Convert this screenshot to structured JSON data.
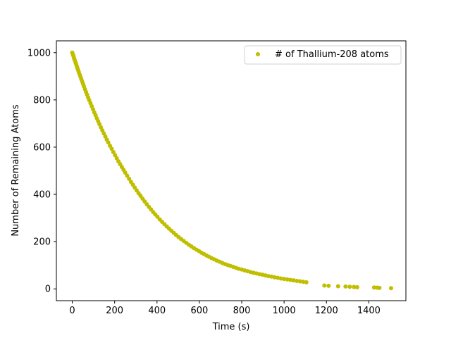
{
  "chart_data": {
    "type": "scatter",
    "title": "",
    "xlabel": "Time (s)",
    "ylabel": "Number of Remaining Atoms",
    "xlim": [
      -75,
      1575
    ],
    "ylim": [
      -50,
      1050
    ],
    "xticks": [
      0,
      200,
      400,
      600,
      800,
      1000,
      1200,
      1400
    ],
    "yticks": [
      0,
      200,
      400,
      600,
      800,
      1000
    ],
    "grid": false,
    "legend_position": "top-right",
    "series": [
      {
        "name": "# of Thallium-208 atoms",
        "color": "#bfbf00",
        "marker": "circle",
        "points": [
          [
            0,
            1000
          ],
          [
            2,
            995
          ],
          [
            4,
            990
          ],
          [
            6,
            985
          ],
          [
            8,
            978
          ],
          [
            10,
            972
          ],
          [
            13,
            965
          ],
          [
            16,
            957
          ],
          [
            19,
            949
          ],
          [
            22,
            941
          ],
          [
            25,
            933
          ],
          [
            28,
            925
          ],
          [
            31,
            917
          ],
          [
            35,
            907
          ],
          [
            39,
            897
          ],
          [
            43,
            887
          ],
          [
            47,
            877
          ],
          [
            51,
            867
          ],
          [
            55,
            857
          ],
          [
            60,
            845
          ],
          [
            65,
            833
          ],
          [
            70,
            822
          ],
          [
            75,
            810
          ],
          [
            80,
            799
          ],
          [
            86,
            786
          ],
          [
            92,
            773
          ],
          [
            98,
            760
          ],
          [
            104,
            747
          ],
          [
            110,
            735
          ],
          [
            116,
            722
          ],
          [
            122,
            710
          ],
          [
            128,
            698
          ],
          [
            135,
            684
          ],
          [
            142,
            671
          ],
          [
            149,
            658
          ],
          [
            156,
            645
          ],
          [
            163,
            632
          ],
          [
            170,
            620
          ],
          [
            178,
            606
          ],
          [
            186,
            593
          ],
          [
            194,
            579
          ],
          [
            202,
            566
          ],
          [
            210,
            553
          ],
          [
            218,
            540
          ],
          [
            226,
            528
          ],
          [
            234,
            516
          ],
          [
            242,
            504
          ],
          [
            250,
            492
          ],
          [
            259,
            479
          ],
          [
            268,
            466
          ],
          [
            277,
            453
          ],
          [
            286,
            441
          ],
          [
            295,
            429
          ],
          [
            304,
            417
          ],
          [
            313,
            405
          ],
          [
            322,
            394
          ],
          [
            332,
            382
          ],
          [
            342,
            370
          ],
          [
            352,
            358
          ],
          [
            362,
            347
          ],
          [
            372,
            336
          ],
          [
            382,
            325
          ],
          [
            392,
            315
          ],
          [
            402,
            305
          ],
          [
            413,
            294
          ],
          [
            424,
            284
          ],
          [
            435,
            274
          ],
          [
            446,
            264
          ],
          [
            457,
            255
          ],
          [
            468,
            246
          ],
          [
            479,
            237
          ],
          [
            490,
            228
          ],
          [
            502,
            219
          ],
          [
            514,
            211
          ],
          [
            526,
            203
          ],
          [
            538,
            195
          ],
          [
            550,
            187
          ],
          [
            562,
            180
          ],
          [
            574,
            173
          ],
          [
            586,
            166
          ],
          [
            598,
            160
          ],
          [
            610,
            153
          ],
          [
            622,
            147
          ],
          [
            634,
            141
          ],
          [
            646,
            136
          ],
          [
            658,
            130
          ],
          [
            670,
            125
          ],
          [
            682,
            120
          ],
          [
            695,
            115
          ],
          [
            708,
            110
          ],
          [
            721,
            105
          ],
          [
            734,
            101
          ],
          [
            747,
            97
          ],
          [
            760,
            93
          ],
          [
            773,
            89
          ],
          [
            786,
            85
          ],
          [
            800,
            82
          ],
          [
            814,
            78
          ],
          [
            828,
            75
          ],
          [
            842,
            71
          ],
          [
            856,
            68
          ],
          [
            870,
            65
          ],
          [
            884,
            62
          ],
          [
            898,
            60
          ],
          [
            912,
            57
          ],
          [
            926,
            54
          ],
          [
            940,
            52
          ],
          [
            955,
            49
          ],
          [
            970,
            47
          ],
          [
            985,
            44
          ],
          [
            1000,
            42
          ],
          [
            1015,
            40
          ],
          [
            1030,
            38
          ],
          [
            1045,
            36
          ],
          [
            1060,
            34
          ],
          [
            1075,
            32
          ],
          [
            1090,
            30
          ],
          [
            1105,
            28
          ],
          [
            1190,
            14
          ],
          [
            1210,
            13
          ],
          [
            1255,
            11
          ],
          [
            1290,
            10
          ],
          [
            1310,
            9
          ],
          [
            1330,
            8
          ],
          [
            1345,
            7
          ],
          [
            1425,
            6
          ],
          [
            1440,
            5
          ],
          [
            1450,
            4
          ],
          [
            1505,
            3
          ]
        ]
      }
    ]
  }
}
